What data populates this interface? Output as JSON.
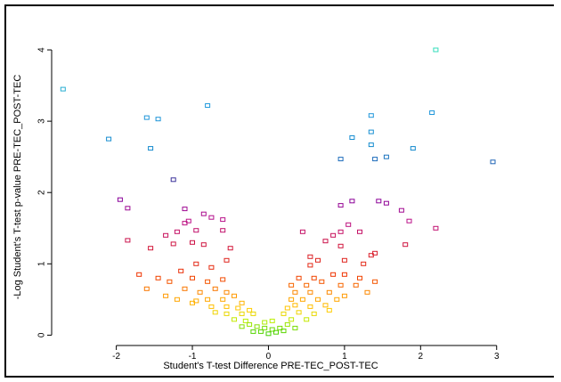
{
  "chart_data": {
    "type": "scatter",
    "xlabel": "Student's T-test Difference PRE-TEC_POST-TEC",
    "ylabel": "-Log Student's T-test p-value PRE-TEC_POST-TEC",
    "xlim": [
      -2.85,
      3.05
    ],
    "ylim": [
      -0.12,
      4.35
    ],
    "x_ticks": [
      -2,
      -1,
      0,
      1,
      2,
      3
    ],
    "y_ticks": [
      0,
      1,
      2,
      3,
      4
    ],
    "grid": false,
    "legend": "none",
    "marker": "open-square",
    "color_scale": [
      {
        "y": 0.0,
        "color": "#33cc00"
      },
      {
        "y": 0.2,
        "color": "#bbee00"
      },
      {
        "y": 0.35,
        "color": "#ffcc00"
      },
      {
        "y": 0.55,
        "color": "#ff9900"
      },
      {
        "y": 0.85,
        "color": "#ee3300"
      },
      {
        "y": 1.3,
        "color": "#cc1144"
      },
      {
        "y": 1.6,
        "color": "#bb1188"
      },
      {
        "y": 1.9,
        "color": "#880099"
      },
      {
        "y": 2.2,
        "color": "#333399"
      },
      {
        "y": 2.6,
        "color": "#1188cc"
      },
      {
        "y": 3.2,
        "color": "#2299dd"
      },
      {
        "y": 4.0,
        "color": "#33ddbb"
      }
    ],
    "points": [
      [
        -2.7,
        3.45
      ],
      [
        -2.1,
        2.75
      ],
      [
        -1.6,
        3.05
      ],
      [
        -1.45,
        3.03
      ],
      [
        -1.55,
        2.62
      ],
      [
        -0.8,
        3.22
      ],
      [
        2.2,
        4.0
      ],
      [
        2.15,
        3.12
      ],
      [
        1.35,
        3.08
      ],
      [
        1.35,
        2.85
      ],
      [
        1.1,
        2.77
      ],
      [
        1.35,
        2.67
      ],
      [
        1.9,
        2.62
      ],
      [
        2.95,
        2.43
      ],
      [
        0.95,
        2.47
      ],
      [
        1.4,
        2.47
      ],
      [
        1.55,
        2.5
      ],
      [
        -1.25,
        2.18
      ],
      [
        -1.95,
        1.9
      ],
      [
        -1.85,
        1.78
      ],
      [
        -1.1,
        1.77
      ],
      [
        -0.85,
        1.7
      ],
      [
        -0.75,
        1.65
      ],
      [
        -1.05,
        1.6
      ],
      [
        -1.1,
        1.57
      ],
      [
        -0.6,
        1.62
      ],
      [
        -0.95,
        1.47
      ],
      [
        -1.2,
        1.45
      ],
      [
        -1.35,
        1.4
      ],
      [
        -0.6,
        1.47
      ],
      [
        -1.85,
        1.33
      ],
      [
        -1.55,
        1.22
      ],
      [
        -1.25,
        1.28
      ],
      [
        -1.0,
        1.3
      ],
      [
        -0.85,
        1.27
      ],
      [
        -0.5,
        1.22
      ],
      [
        -1.7,
        0.85
      ],
      [
        -1.15,
        0.9
      ],
      [
        -0.95,
        1.0
      ],
      [
        -0.75,
        0.95
      ],
      [
        -0.55,
        1.05
      ],
      [
        0.95,
        1.82
      ],
      [
        1.1,
        1.88
      ],
      [
        1.45,
        1.88
      ],
      [
        1.55,
        1.85
      ],
      [
        1.75,
        1.75
      ],
      [
        1.85,
        1.6
      ],
      [
        2.2,
        1.5
      ],
      [
        1.05,
        1.55
      ],
      [
        0.95,
        1.45
      ],
      [
        0.45,
        1.45
      ],
      [
        0.85,
        1.4
      ],
      [
        0.75,
        1.32
      ],
      [
        1.2,
        1.45
      ],
      [
        0.95,
        1.25
      ],
      [
        1.8,
        1.27
      ],
      [
        1.4,
        1.15
      ],
      [
        1.35,
        1.12
      ],
      [
        0.55,
        1.1
      ],
      [
        0.65,
        1.05
      ],
      [
        1.0,
        1.05
      ],
      [
        1.25,
        1.0
      ],
      [
        0.55,
        0.98
      ],
      [
        -1.45,
        0.8
      ],
      [
        -1.3,
        0.75
      ],
      [
        -1.0,
        0.8
      ],
      [
        -0.8,
        0.75
      ],
      [
        -0.6,
        0.78
      ],
      [
        -1.6,
        0.65
      ],
      [
        -1.1,
        0.65
      ],
      [
        -0.9,
        0.6
      ],
      [
        -0.7,
        0.65
      ],
      [
        -0.55,
        0.6
      ],
      [
        -1.35,
        0.55
      ],
      [
        -1.2,
        0.5
      ],
      [
        -0.95,
        0.48
      ],
      [
        -0.8,
        0.5
      ],
      [
        -0.6,
        0.5
      ],
      [
        -0.45,
        0.55
      ],
      [
        -0.35,
        0.45
      ],
      [
        -1.0,
        0.45
      ],
      [
        -0.75,
        0.4
      ],
      [
        -0.55,
        0.4
      ],
      [
        -0.4,
        0.38
      ],
      [
        -0.25,
        0.35
      ],
      [
        0.4,
        0.8
      ],
      [
        0.6,
        0.8
      ],
      [
        0.85,
        0.85
      ],
      [
        1.0,
        0.85
      ],
      [
        1.2,
        0.8
      ],
      [
        1.4,
        0.75
      ],
      [
        0.3,
        0.7
      ],
      [
        0.5,
        0.7
      ],
      [
        0.7,
        0.75
      ],
      [
        0.95,
        0.7
      ],
      [
        1.15,
        0.7
      ],
      [
        1.3,
        0.6
      ],
      [
        0.35,
        0.6
      ],
      [
        0.55,
        0.6
      ],
      [
        0.8,
        0.6
      ],
      [
        1.0,
        0.55
      ],
      [
        0.3,
        0.5
      ],
      [
        0.45,
        0.5
      ],
      [
        0.65,
        0.5
      ],
      [
        0.9,
        0.5
      ],
      [
        0.35,
        0.42
      ],
      [
        0.55,
        0.4
      ],
      [
        0.75,
        0.42
      ],
      [
        0.25,
        0.38
      ],
      [
        -0.35,
        0.3
      ],
      [
        -0.55,
        0.3
      ],
      [
        -0.7,
        0.32
      ],
      [
        -0.2,
        0.3
      ],
      [
        0.2,
        0.3
      ],
      [
        0.4,
        0.32
      ],
      [
        0.6,
        0.3
      ],
      [
        0.8,
        0.35
      ],
      [
        -0.45,
        0.22
      ],
      [
        -0.3,
        0.2
      ],
      [
        0.3,
        0.22
      ],
      [
        0.5,
        0.22
      ],
      [
        -0.25,
        0.15
      ],
      [
        -0.15,
        0.12
      ],
      [
        -0.05,
        0.1
      ],
      [
        0.05,
        0.08
      ],
      [
        0.15,
        0.1
      ],
      [
        0.25,
        0.15
      ],
      [
        -0.35,
        0.12
      ],
      [
        -0.2,
        0.05
      ],
      [
        -0.1,
        0.05
      ],
      [
        0.0,
        0.02
      ],
      [
        0.1,
        0.04
      ],
      [
        0.2,
        0.06
      ],
      [
        0.35,
        0.1
      ],
      [
        -0.05,
        0.18
      ],
      [
        0.05,
        0.2
      ]
    ]
  }
}
